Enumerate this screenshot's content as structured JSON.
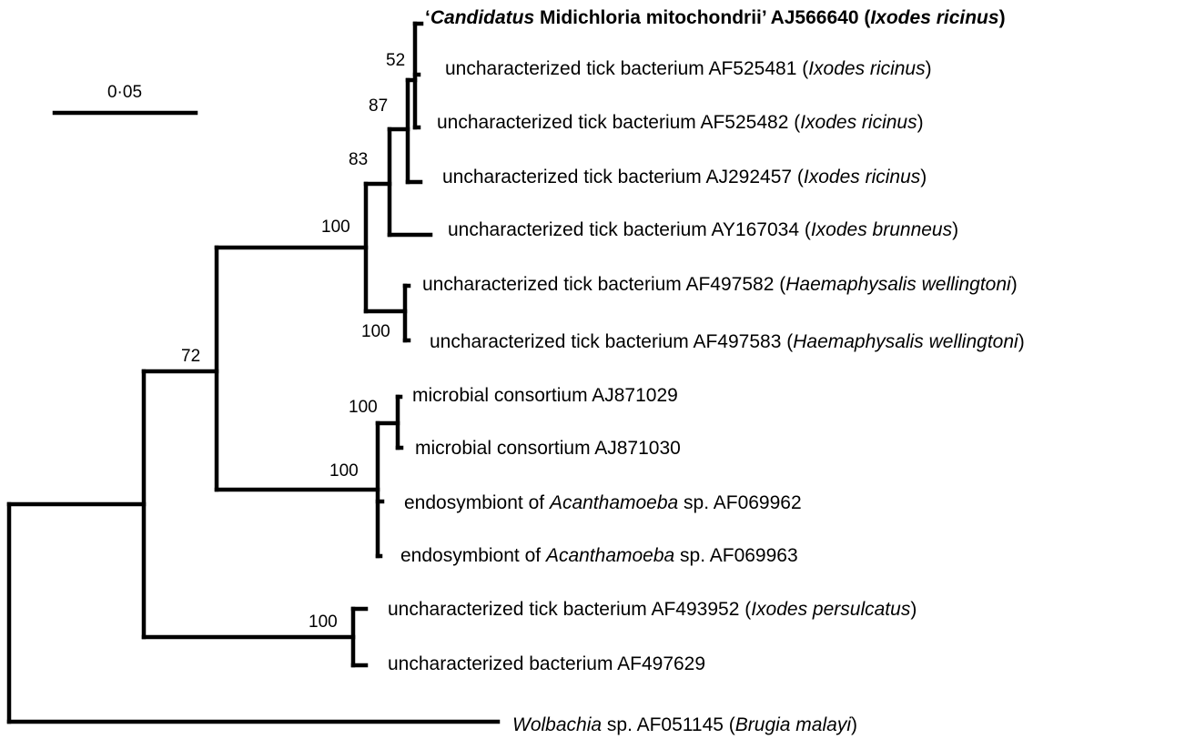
{
  "scale_bar": {
    "label": "0·05"
  },
  "taxa": [
    {
      "id": "t1",
      "parts": [
        {
          "text": "‘",
          "style": "normal",
          "weight": "bold"
        },
        {
          "text": "Candidatus",
          "style": "italic",
          "weight": "bold"
        },
        {
          "text": " Midichloria mitochondrii’ AJ566640  (",
          "style": "normal",
          "weight": "bold"
        },
        {
          "text": "Ixodes ricinus",
          "style": "italic",
          "weight": "bold"
        },
        {
          "text": ")",
          "style": "normal",
          "weight": "bold"
        }
      ]
    },
    {
      "id": "t2",
      "parts": [
        {
          "text": "uncharacterized tick bacterium AF525481 (",
          "style": "normal",
          "weight": "normal"
        },
        {
          "text": "Ixodes ricinus",
          "style": "italic",
          "weight": "normal"
        },
        {
          "text": ")",
          "style": "normal",
          "weight": "normal"
        }
      ]
    },
    {
      "id": "t3",
      "parts": [
        {
          "text": "uncharacterized tick bacterium AF525482 (",
          "style": "normal",
          "weight": "normal"
        },
        {
          "text": "Ixodes ricinus",
          "style": "italic",
          "weight": "normal"
        },
        {
          "text": ")",
          "style": "normal",
          "weight": "normal"
        }
      ]
    },
    {
      "id": "t4",
      "parts": [
        {
          "text": "uncharacterized tick bacterium AJ292457 (",
          "style": "normal",
          "weight": "normal"
        },
        {
          "text": "Ixodes ricinus",
          "style": "italic",
          "weight": "normal"
        },
        {
          "text": ")",
          "style": "normal",
          "weight": "normal"
        }
      ]
    },
    {
      "id": "t5",
      "parts": [
        {
          "text": "uncharacterized tick bacterium AY167034 (",
          "style": "normal",
          "weight": "normal"
        },
        {
          "text": "Ixodes brunneus",
          "style": "italic",
          "weight": "normal"
        },
        {
          "text": ")",
          "style": "normal",
          "weight": "normal"
        }
      ]
    },
    {
      "id": "t6",
      "parts": [
        {
          "text": "uncharacterized tick bacterium AF497582 (",
          "style": "normal",
          "weight": "normal"
        },
        {
          "text": "Haemaphysalis wellingtoni",
          "style": "italic",
          "weight": "normal"
        },
        {
          "text": ")",
          "style": "normal",
          "weight": "normal"
        }
      ]
    },
    {
      "id": "t7",
      "parts": [
        {
          "text": "uncharacterized tick bacterium AF497583 (",
          "style": "normal",
          "weight": "normal"
        },
        {
          "text": "Haemaphysalis wellingtoni",
          "style": "italic",
          "weight": "normal"
        },
        {
          "text": ")",
          "style": "normal",
          "weight": "normal"
        }
      ]
    },
    {
      "id": "t8",
      "parts": [
        {
          "text": "microbial consortium AJ871029",
          "style": "normal",
          "weight": "normal"
        }
      ]
    },
    {
      "id": "t9",
      "parts": [
        {
          "text": "microbial consortium AJ871030",
          "style": "normal",
          "weight": "normal"
        }
      ]
    },
    {
      "id": "t10",
      "parts": [
        {
          "text": "endosymbiont of ",
          "style": "normal",
          "weight": "normal"
        },
        {
          "text": "Acanthamoeba",
          "style": "italic",
          "weight": "normal"
        },
        {
          "text": " sp. AF069962",
          "style": "normal",
          "weight": "normal"
        }
      ]
    },
    {
      "id": "t11",
      "parts": [
        {
          "text": "endosymbiont of ",
          "style": "normal",
          "weight": "normal"
        },
        {
          "text": "Acanthamoeba",
          "style": "italic",
          "weight": "normal"
        },
        {
          "text": " sp. AF069963",
          "style": "normal",
          "weight": "normal"
        }
      ]
    },
    {
      "id": "t12",
      "parts": [
        {
          "text": "uncharacterized tick bacterium AF493952 (",
          "style": "normal",
          "weight": "normal"
        },
        {
          "text": "Ixodes persulcatus",
          "style": "italic",
          "weight": "normal"
        },
        {
          "text": ")",
          "style": "normal",
          "weight": "normal"
        }
      ]
    },
    {
      "id": "t13",
      "parts": [
        {
          "text": "uncharacterized bacterium AF497629",
          "style": "normal",
          "weight": "normal"
        }
      ]
    },
    {
      "id": "t14",
      "parts": [
        {
          "text": "Wolbachia",
          "style": "italic",
          "weight": "normal"
        },
        {
          "text": " sp. AF051145 (",
          "style": "normal",
          "weight": "normal"
        },
        {
          "text": "Brugia malayi",
          "style": "italic",
          "weight": "normal"
        },
        {
          "text": ")",
          "style": "normal",
          "weight": "normal"
        }
      ]
    }
  ],
  "bootstrap": [
    {
      "id": "b52",
      "value": "52"
    },
    {
      "id": "b87",
      "value": "87"
    },
    {
      "id": "b83",
      "value": "83"
    },
    {
      "id": "b100a",
      "value": "100"
    },
    {
      "id": "b100b",
      "value": "100"
    },
    {
      "id": "b72",
      "value": "72"
    },
    {
      "id": "b100c",
      "value": "100"
    },
    {
      "id": "b100d",
      "value": "100"
    },
    {
      "id": "b100e",
      "value": "100"
    }
  ]
}
